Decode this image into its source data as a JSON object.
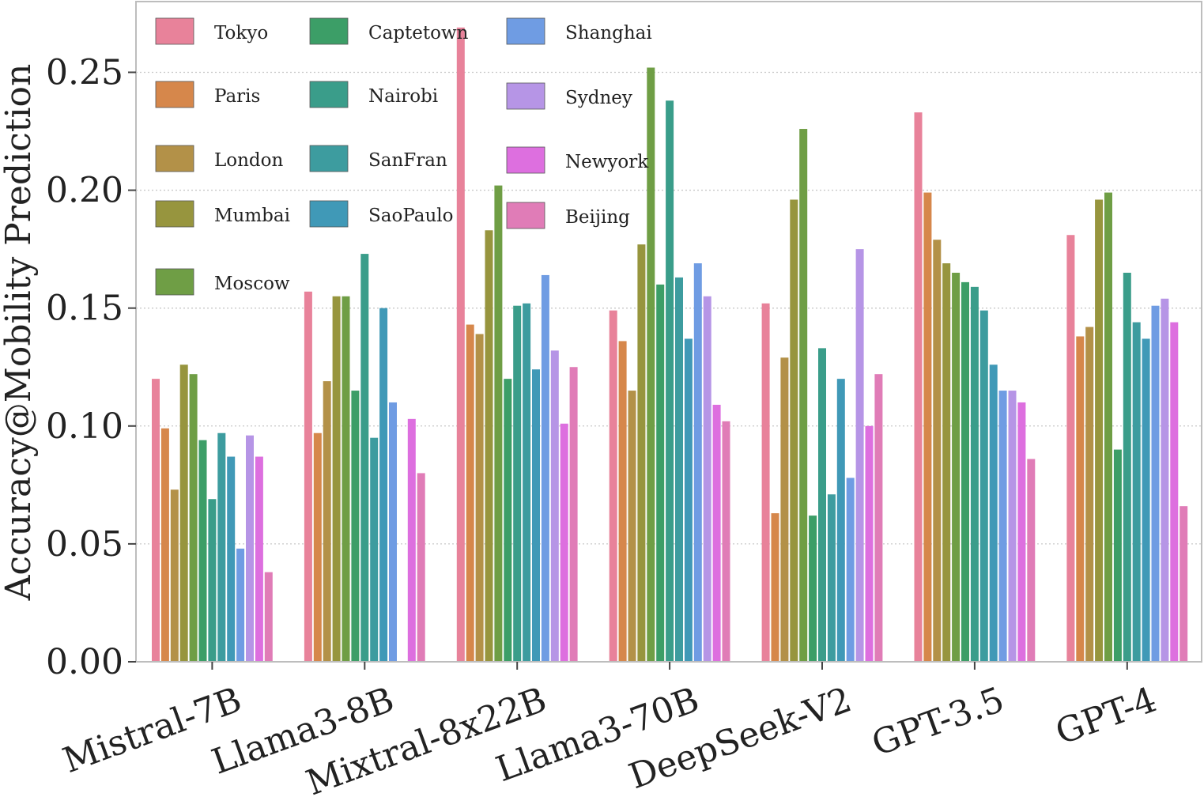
{
  "chart_data": {
    "type": "bar",
    "ylabel": "Accuracy@Mobility Prediction",
    "xlabel": "",
    "ylim": [
      0,
      0.28
    ],
    "yticks": [
      "0.00",
      "0.05",
      "0.10",
      "0.15",
      "0.20",
      "0.25"
    ],
    "grid": "horizontal-dotted",
    "legend_position": "top-left",
    "categories": [
      "Mistral-7B",
      "Llama3-8B",
      "Mixtral-8x22B",
      "Llama3-70B",
      "DeepSeek-V2",
      "GPT-3.5",
      "GPT-4"
    ],
    "series": [
      {
        "name": "Tokyo",
        "color": "#e8829a",
        "values": [
          0.12,
          0.157,
          0.269,
          0.149,
          0.152,
          0.233,
          0.181
        ]
      },
      {
        "name": "Paris",
        "color": "#d6874b",
        "values": [
          0.099,
          0.097,
          0.143,
          0.136,
          0.063,
          0.199,
          0.138
        ]
      },
      {
        "name": "London",
        "color": "#b39148",
        "values": [
          0.073,
          0.119,
          0.139,
          0.115,
          0.129,
          0.179,
          0.142
        ]
      },
      {
        "name": "Mumbai",
        "color": "#97953e",
        "values": [
          0.126,
          0.155,
          0.183,
          0.177,
          0.196,
          0.169,
          0.196
        ]
      },
      {
        "name": "Moscow",
        "color": "#6f9e45",
        "values": [
          0.122,
          0.155,
          0.202,
          0.252,
          0.226,
          0.165,
          0.199
        ]
      },
      {
        "name": "Captetown",
        "color": "#3c9e67",
        "values": [
          0.094,
          0.115,
          0.12,
          0.16,
          0.062,
          0.161,
          0.09
        ]
      },
      {
        "name": "Nairobi",
        "color": "#3a9d8a",
        "values": [
          0.069,
          0.173,
          0.151,
          0.238,
          0.133,
          0.159,
          0.165
        ]
      },
      {
        "name": "SanFran",
        "color": "#3d9c9f",
        "values": [
          0.097,
          0.095,
          0.152,
          0.163,
          0.071,
          0.149,
          0.144
        ]
      },
      {
        "name": "SaoPaulo",
        "color": "#4099b7",
        "values": [
          0.087,
          0.15,
          0.124,
          0.137,
          0.12,
          0.126,
          0.137
        ]
      },
      {
        "name": "Shanghai",
        "color": "#6f9ce3",
        "values": [
          0.048,
          0.11,
          0.164,
          0.169,
          0.078,
          0.115,
          0.151
        ]
      },
      {
        "name": "Sydney",
        "color": "#b695e6",
        "values": [
          0.096,
          0.0,
          0.132,
          0.155,
          0.175,
          0.115,
          0.154
        ]
      },
      {
        "name": "Newyork",
        "color": "#dd6fdf",
        "values": [
          0.087,
          0.103,
          0.101,
          0.109,
          0.1,
          0.11,
          0.144
        ]
      },
      {
        "name": "Beijing",
        "color": "#e07cb7",
        "values": [
          0.038,
          0.08,
          0.125,
          0.102,
          0.122,
          0.086,
          0.066
        ]
      }
    ],
    "legend_columns": [
      [
        "Tokyo",
        "Paris",
        "London",
        "Mumbai",
        "Moscow"
      ],
      [
        "Captetown",
        "Nairobi",
        "SanFran",
        "SaoPaulo"
      ],
      [
        "Shanghai",
        "Sydney",
        "Newyork",
        "Beijing"
      ]
    ]
  }
}
